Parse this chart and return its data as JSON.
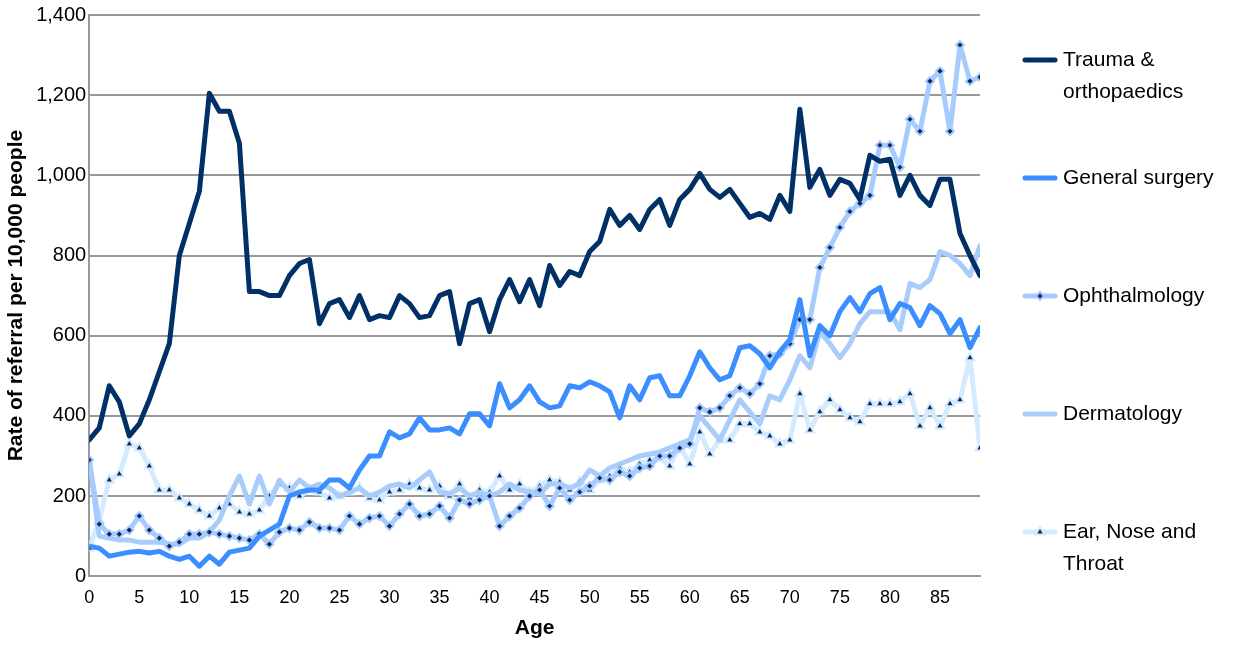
{
  "chart_data": {
    "type": "line",
    "xlabel": "Age",
    "ylabel": "Rate of referral per 10,000 people",
    "xlim": [
      0,
      89
    ],
    "xticks": [
      0,
      5,
      10,
      15,
      20,
      25,
      30,
      35,
      40,
      45,
      50,
      55,
      60,
      65,
      70,
      75,
      80,
      85
    ],
    "ylim": [
      0,
      1400
    ],
    "yticks": [
      0,
      200,
      400,
      600,
      800,
      {
        "value": 1000,
        "label": "1,000"
      },
      {
        "value": 1200,
        "label": "1,200"
      },
      {
        "value": 1400,
        "label": "1,400"
      }
    ],
    "grid": "y",
    "legend": "right",
    "x": [
      0,
      1,
      2,
      3,
      4,
      5,
      6,
      7,
      8,
      9,
      10,
      11,
      12,
      13,
      14,
      15,
      16,
      17,
      18,
      19,
      20,
      21,
      22,
      23,
      24,
      25,
      26,
      27,
      28,
      29,
      30,
      31,
      32,
      33,
      34,
      35,
      36,
      37,
      38,
      39,
      40,
      41,
      42,
      43,
      44,
      45,
      46,
      47,
      48,
      49,
      50,
      51,
      52,
      53,
      54,
      55,
      56,
      57,
      58,
      59,
      60,
      61,
      62,
      63,
      64,
      65,
      66,
      67,
      68,
      69,
      70,
      71,
      72,
      73,
      74,
      75,
      76,
      77,
      78,
      79,
      80,
      81,
      82,
      83,
      84,
      85,
      86,
      87,
      88,
      89
    ],
    "series": [
      {
        "name": "Trauma & orthopaedics",
        "color": "#003066",
        "marker": "none",
        "values": [
          340,
          370,
          475,
          435,
          350,
          380,
          440,
          510,
          580,
          800,
          880,
          960,
          1205,
          1160,
          1160,
          1080,
          710,
          710,
          700,
          700,
          750,
          780,
          790,
          630,
          680,
          690,
          645,
          700,
          640,
          650,
          645,
          700,
          680,
          645,
          650,
          700,
          710,
          580,
          680,
          690,
          610,
          690,
          740,
          685,
          740,
          675,
          775,
          725,
          760,
          750,
          810,
          835,
          915,
          875,
          900,
          865,
          915,
          940,
          875,
          940,
          965,
          1005,
          965,
          945,
          965,
          930,
          895,
          905,
          890,
          950,
          910,
          1165,
          970,
          1015,
          950,
          990,
          980,
          940,
          1050,
          1035,
          1040,
          950,
          1000,
          950,
          925,
          990,
          990,
          855,
          800,
          750
        ]
      },
      {
        "name": "General surgery",
        "color": "#3a8eff",
        "marker": "none",
        "values": [
          75,
          70,
          50,
          55,
          60,
          62,
          58,
          62,
          50,
          42,
          50,
          25,
          50,
          30,
          60,
          65,
          70,
          100,
          115,
          130,
          200,
          210,
          215,
          215,
          240,
          240,
          220,
          265,
          300,
          300,
          360,
          345,
          355,
          395,
          365,
          365,
          370,
          355,
          405,
          405,
          375,
          480,
          420,
          440,
          475,
          435,
          420,
          425,
          475,
          470,
          485,
          475,
          460,
          395,
          475,
          440,
          495,
          500,
          450,
          450,
          500,
          560,
          520,
          490,
          500,
          570,
          575,
          555,
          520,
          560,
          590,
          690,
          550,
          625,
          600,
          660,
          695,
          660,
          705,
          720,
          640,
          680,
          670,
          625,
          675,
          655,
          605,
          640,
          570,
          620
        ]
      },
      {
        "name": "Ophthalmology",
        "color": "#a6cbff",
        "marker": "diamond",
        "values": [
          290,
          130,
          105,
          105,
          115,
          150,
          115,
          95,
          75,
          85,
          105,
          105,
          110,
          105,
          100,
          95,
          90,
          105,
          80,
          110,
          120,
          115,
          135,
          120,
          120,
          115,
          150,
          130,
          145,
          150,
          125,
          155,
          180,
          150,
          155,
          175,
          145,
          190,
          180,
          190,
          200,
          125,
          150,
          170,
          200,
          215,
          175,
          220,
          190,
          210,
          225,
          245,
          240,
          260,
          250,
          270,
          275,
          300,
          300,
          320,
          330,
          420,
          410,
          420,
          450,
          470,
          455,
          480,
          550,
          555,
          580,
          640,
          640,
          770,
          820,
          870,
          910,
          930,
          950,
          1075,
          1075,
          1020,
          1140,
          1110,
          1235,
          1260,
          1110,
          1325,
          1235,
          1245
        ]
      },
      {
        "name": "Dermatology",
        "color": "#a9cdfa",
        "marker": "none",
        "values": [
          290,
          100,
          95,
          90,
          90,
          85,
          85,
          85,
          80,
          80,
          95,
          95,
          110,
          140,
          200,
          250,
          180,
          250,
          180,
          240,
          210,
          240,
          220,
          230,
          220,
          200,
          210,
          220,
          200,
          210,
          225,
          230,
          220,
          240,
          260,
          210,
          205,
          220,
          200,
          210,
          200,
          210,
          230,
          215,
          210,
          205,
          230,
          230,
          220,
          230,
          265,
          250,
          270,
          280,
          290,
          300,
          305,
          310,
          320,
          330,
          340,
          400,
          370,
          340,
          390,
          440,
          410,
          380,
          450,
          440,
          490,
          550,
          520,
          610,
          580,
          545,
          580,
          630,
          660,
          660,
          660,
          615,
          730,
          720,
          740,
          810,
          800,
          780,
          750,
          825
        ]
      },
      {
        "name": "Ear, Nose and Throat",
        "color": "#d4ebff",
        "marker": "triangle",
        "values": [
          70,
          140,
          240,
          255,
          330,
          320,
          275,
          215,
          215,
          195,
          180,
          165,
          150,
          170,
          180,
          160,
          155,
          165,
          200,
          230,
          220,
          200,
          215,
          210,
          195,
          200,
          210,
          220,
          195,
          190,
          210,
          215,
          230,
          220,
          215,
          225,
          200,
          230,
          195,
          215,
          210,
          250,
          215,
          230,
          210,
          225,
          240,
          235,
          215,
          235,
          215,
          240,
          250,
          270,
          260,
          280,
          290,
          295,
          275,
          325,
          280,
          360,
          305,
          340,
          340,
          380,
          380,
          360,
          350,
          330,
          340,
          455,
          365,
          410,
          440,
          415,
          395,
          385,
          430,
          430,
          430,
          435,
          455,
          375,
          420,
          375,
          430,
          440,
          545,
          320
        ]
      }
    ]
  }
}
